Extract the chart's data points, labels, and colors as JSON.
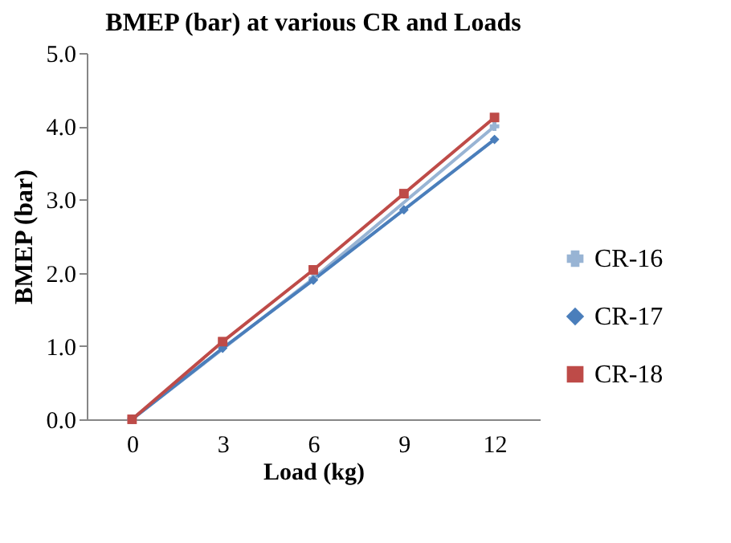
{
  "chart_data": {
    "type": "line",
    "title": "BMEP (bar) at various CR and Loads",
    "xlabel": "Load (kg)",
    "ylabel": "BMEP (bar)",
    "categories": [
      "0",
      "3",
      "6",
      "9",
      "12"
    ],
    "series": [
      {
        "name": "CR-16",
        "color": "#98b4d4",
        "marker": "cross",
        "values": [
          0,
          null,
          1.92,
          null,
          4.0
        ]
      },
      {
        "name": "CR-17",
        "color": "#4a7ebb",
        "marker": "diamond",
        "values": [
          0,
          0.97,
          1.9,
          2.86,
          3.82
        ]
      },
      {
        "name": "CR-18",
        "color": "#be4b48",
        "marker": "square",
        "values": [
          0,
          1.06,
          2.04,
          3.08,
          4.12
        ]
      }
    ],
    "ylim": [
      0,
      5
    ],
    "yticks": [
      {
        "value": 0,
        "label": "0.0"
      },
      {
        "value": 1,
        "label": "1.0"
      },
      {
        "value": 2,
        "label": "2.0"
      },
      {
        "value": 3,
        "label": "3.0"
      },
      {
        "value": 4,
        "label": "4.0"
      },
      {
        "value": 5,
        "label": "5.0"
      }
    ],
    "grid": false,
    "legend": "right",
    "line_style": "solid"
  }
}
